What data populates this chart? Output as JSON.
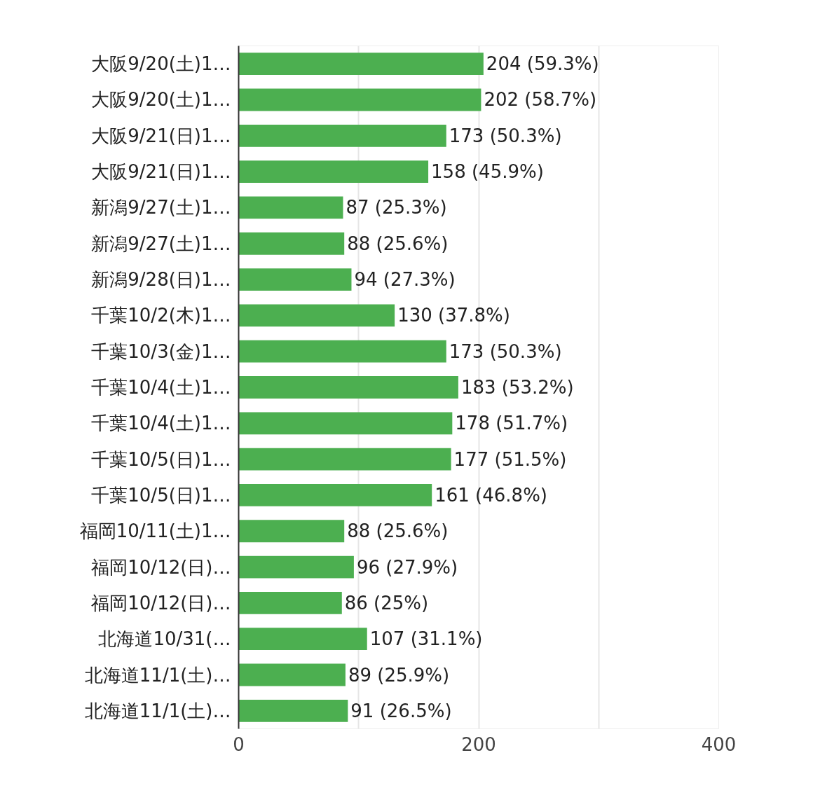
{
  "chart_data": {
    "type": "bar",
    "orientation": "horizontal",
    "categories": [
      "大阪9/20(土)1…",
      "大阪9/20(土)1…",
      "大阪9/21(日)1…",
      "大阪9/21(日)1…",
      "新潟9/27(土)1…",
      "新潟9/27(土)1…",
      "新潟9/28(日)1…",
      "千葉10/2(木)1…",
      "千葉10/3(金)1…",
      "千葉10/4(土)1…",
      "千葉10/4(土)1…",
      "千葉10/5(日)1…",
      "千葉10/5(日)1…",
      "福岡10/11(土)1…",
      "福岡10/12(日)…",
      "福岡10/12(日)…",
      "北海道10/31(…",
      "北海道11/1(土)…",
      "北海道11/1(土)…"
    ],
    "values": [
      204,
      202,
      173,
      158,
      87,
      88,
      94,
      130,
      173,
      183,
      178,
      177,
      161,
      88,
      96,
      86,
      107,
      89,
      91
    ],
    "value_labels": [
      "204 (59.3%)",
      "202 (58.7%)",
      "173 (50.3%)",
      "158 (45.9%)",
      "87 (25.3%)",
      "88 (25.6%)",
      "94 (27.3%)",
      "130 (37.8%)",
      "173 (50.3%)",
      "183 (53.2%)",
      "178 (51.7%)",
      "177 (51.5%)",
      "161 (46.8%)",
      "88 (25.6%)",
      "96 (27.9%)",
      "86 (25%)",
      "107 (31.1%)",
      "89 (25.9%)",
      "91 (26.5%)"
    ],
    "color": "#4caf50",
    "xlim": [
      0,
      400
    ],
    "xticks": [
      0,
      {
        "value": 100,
        "label": null
      },
      200,
      {
        "value": 300,
        "label": null
      },
      400
    ],
    "grid": "x"
  }
}
